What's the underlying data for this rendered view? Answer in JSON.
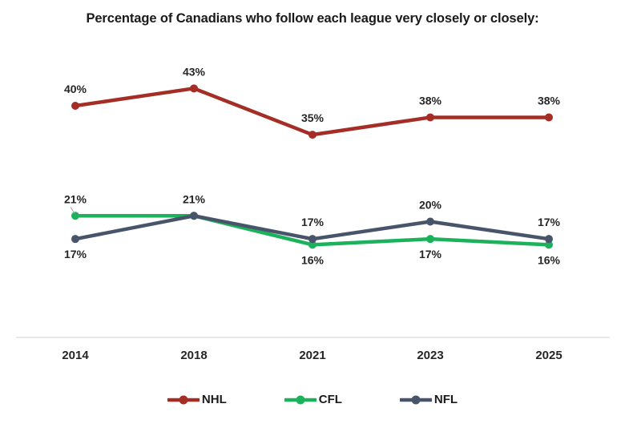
{
  "chart_data": {
    "type": "line",
    "title": "Percentage of Canadians who follow each league very closely or closely:",
    "categories": [
      "2014",
      "2018",
      "2021",
      "2023",
      "2025"
    ],
    "series": [
      {
        "name": "NHL",
        "color": "#A42D26",
        "values": [
          40,
          43,
          35,
          38,
          38
        ],
        "label_sides": [
          "above",
          "above",
          "above",
          "above",
          "above"
        ]
      },
      {
        "name": "CFL",
        "color": "#1CB25B",
        "values": [
          21,
          21,
          16,
          17,
          16
        ],
        "label_sides": [
          "above",
          "above",
          "below",
          "below",
          "below"
        ]
      },
      {
        "name": "NFL",
        "color": "#48546A",
        "values": [
          17,
          21,
          17,
          20,
          17
        ],
        "label_sides": [
          "below",
          "none",
          "above",
          "above",
          "above"
        ]
      }
    ],
    "label_format": "{v}%",
    "label_color": "#262626",
    "tick_color": "#262626",
    "axis": {
      "baseline_value": 0,
      "line_color": "#D9D9D9"
    },
    "leader_lines": [
      {
        "series": "CFL",
        "index": 0
      }
    ],
    "legend_position": "bottom",
    "grid": false,
    "ylim": [
      0,
      58
    ]
  }
}
